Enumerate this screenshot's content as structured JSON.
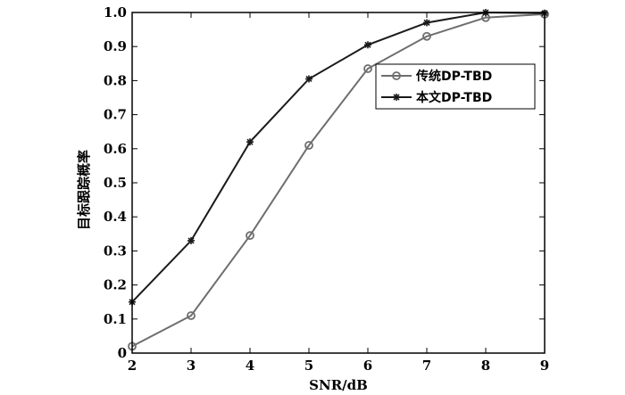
{
  "chart_data": {
    "type": "line",
    "title": "",
    "xlabel": "SNR/dB",
    "ylabel": "目标跟踪概率",
    "x": [
      2,
      3,
      4,
      5,
      6,
      7,
      8,
      9
    ],
    "xlim": [
      2,
      9
    ],
    "ylim": [
      0,
      1
    ],
    "xticks": [
      "2",
      "3",
      "4",
      "5",
      "6",
      "7",
      "8",
      "9"
    ],
    "yticks": [
      "0",
      "0.1",
      "0.2",
      "0.3",
      "0.4",
      "0.5",
      "0.6",
      "0.7",
      "0.8",
      "0.9",
      "1.0"
    ],
    "grid": false,
    "legend_position": "right",
    "series": [
      {
        "name": "传统DP-TBD",
        "marker": "circle",
        "color": "#6e6e6e",
        "values": [
          0.02,
          0.11,
          0.345,
          0.61,
          0.835,
          0.93,
          0.985,
          0.995
        ]
      },
      {
        "name": "本文DP-TBD",
        "marker": "asterisk",
        "color": "#1a1a1a",
        "values": [
          0.15,
          0.33,
          0.62,
          0.805,
          0.905,
          0.97,
          1.0,
          0.998
        ]
      }
    ]
  }
}
